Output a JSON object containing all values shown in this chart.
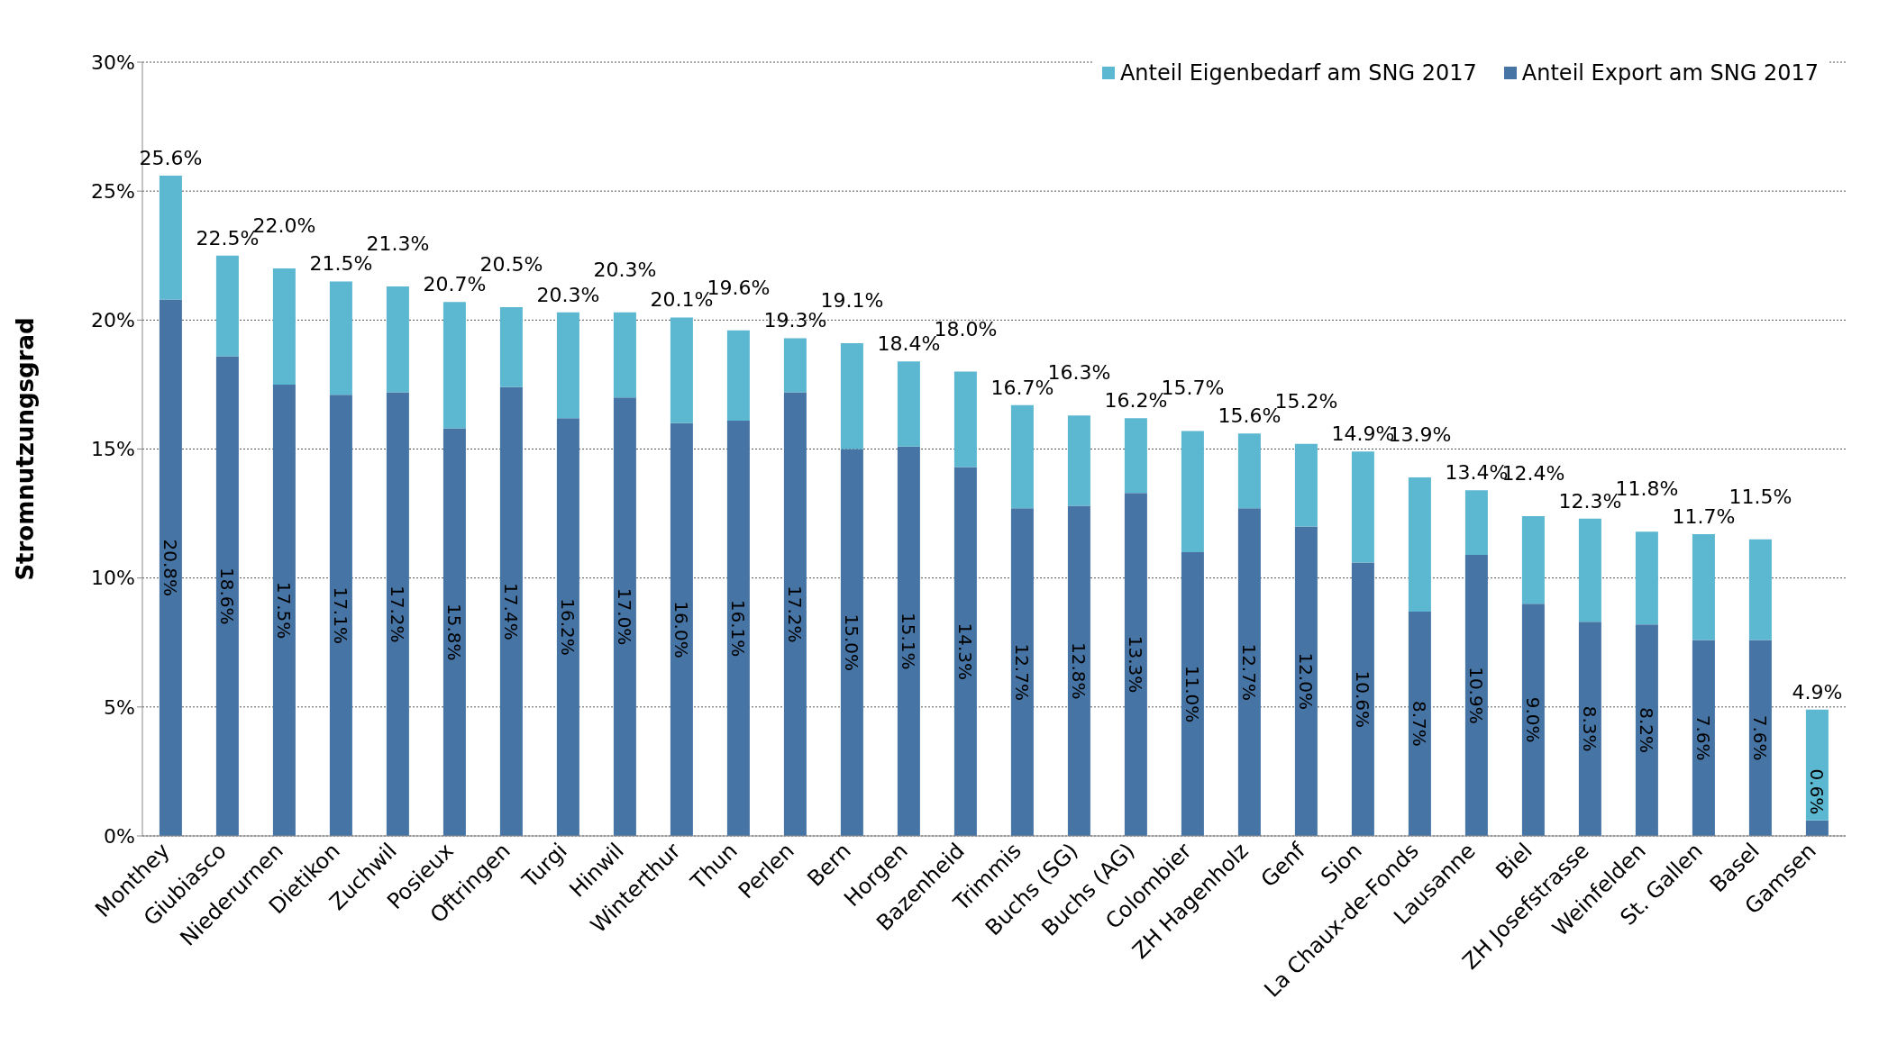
{
  "chart_data": {
    "type": "bar",
    "stacked": true,
    "ylabel": "Stromnutzungsgrad",
    "categories": [
      "Monthey",
      "Giubiasco",
      "Niederurnen",
      "Dietikon",
      "Zuchwil",
      "Posieux",
      "Oftringen",
      "Turgi",
      "Hinwil",
      "Winterthur",
      "Thun",
      "Perlen",
      "Bern",
      "Horgen",
      "Bazenheid",
      "Trimmis",
      "Buchs (SG)",
      "Buchs (AG)",
      "Colombier",
      "ZH Hagenholz",
      "Genf",
      "Sion",
      "La Chaux-de-Fonds",
      "Lausanne",
      "Biel",
      "ZH Josefstrasse",
      "Weinfelden",
      "St. Gallen",
      "Basel",
      "Gamsen"
    ],
    "series": [
      {
        "name": "Anteil Export am SNG 2017",
        "color": "#4674a4",
        "values": [
          20.8,
          18.6,
          17.5,
          17.1,
          17.2,
          15.8,
          17.4,
          16.2,
          17.0,
          16.0,
          16.1,
          17.2,
          15.0,
          15.1,
          14.3,
          12.7,
          12.8,
          13.3,
          11.0,
          12.7,
          12.0,
          10.6,
          8.7,
          10.9,
          9.0,
          8.3,
          8.2,
          7.6,
          7.6,
          0.6
        ],
        "value_labels": [
          "20.8%",
          "18.6%",
          "17.5%",
          "17.1%",
          "17.2%",
          "15.8%",
          "17.4%",
          "16.2%",
          "17.0%",
          "16.0%",
          "16.1%",
          "17.2%",
          "15.0%",
          "15.1%",
          "14.3%",
          "12.7%",
          "12.8%",
          "13.3%",
          "11.0%",
          "12.7%",
          "12.0%",
          "10.6%",
          "8.7%",
          "10.9%",
          "9.0%",
          "8.3%",
          "8.2%",
          "7.6%",
          "7.6%",
          "0.6%"
        ]
      },
      {
        "name": "Anteil Eigenbedarf am SNG 2017",
        "color": "#5bb8d0",
        "values": [
          4.8,
          3.9,
          4.5,
          4.4,
          4.1,
          4.9,
          3.1,
          4.1,
          3.3,
          4.1,
          3.5,
          2.1,
          4.1,
          3.3,
          3.7,
          4.0,
          3.5,
          2.9,
          4.7,
          2.9,
          3.2,
          4.3,
          5.2,
          2.5,
          3.4,
          4.0,
          3.6,
          4.1,
          3.9,
          4.3
        ]
      }
    ],
    "totals": [
      "25.6%",
      "22.5%",
      "22.0%",
      "21.5%",
      "21.3%",
      "20.7%",
      "20.5%",
      "20.3%",
      "20.3%",
      "20.1%",
      "19.6%",
      "19.3%",
      "19.1%",
      "18.4%",
      "18.0%",
      "16.7%",
      "16.3%",
      "16.2%",
      "15.7%",
      "15.6%",
      "15.2%",
      "14.9%",
      "13.9%",
      "13.4%",
      "12.4%",
      "12.3%",
      "11.8%",
      "11.7%",
      "11.5%",
      "4.9%"
    ],
    "ylim": [
      0,
      30
    ],
    "yticks": [
      {
        "value": 0,
        "label": "0%"
      },
      {
        "value": 5,
        "label": "5%"
      },
      {
        "value": 10,
        "label": "10%"
      },
      {
        "value": 15,
        "label": "15%"
      },
      {
        "value": 20,
        "label": "20%"
      },
      {
        "value": 25,
        "label": "25%"
      },
      {
        "value": 30,
        "label": "30%"
      }
    ],
    "grid": "y",
    "legend": "top right"
  }
}
